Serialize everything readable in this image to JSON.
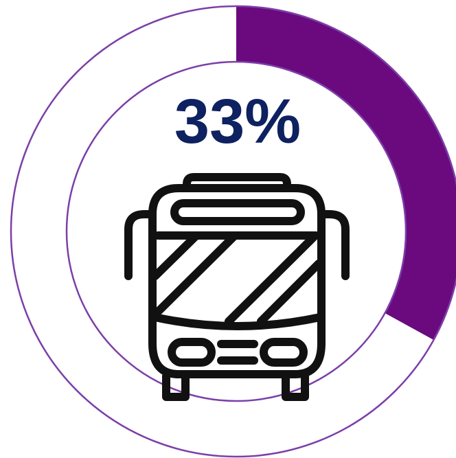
{
  "chart_data": {
    "type": "donut",
    "value_percent": 33,
    "label": "33%",
    "colors": {
      "fill": "#6a0a7e",
      "outline": "#7b3fa8",
      "remainder": "#ffffff",
      "label": "#0e2160",
      "icon": "#111111"
    },
    "icon": "bus-icon"
  }
}
